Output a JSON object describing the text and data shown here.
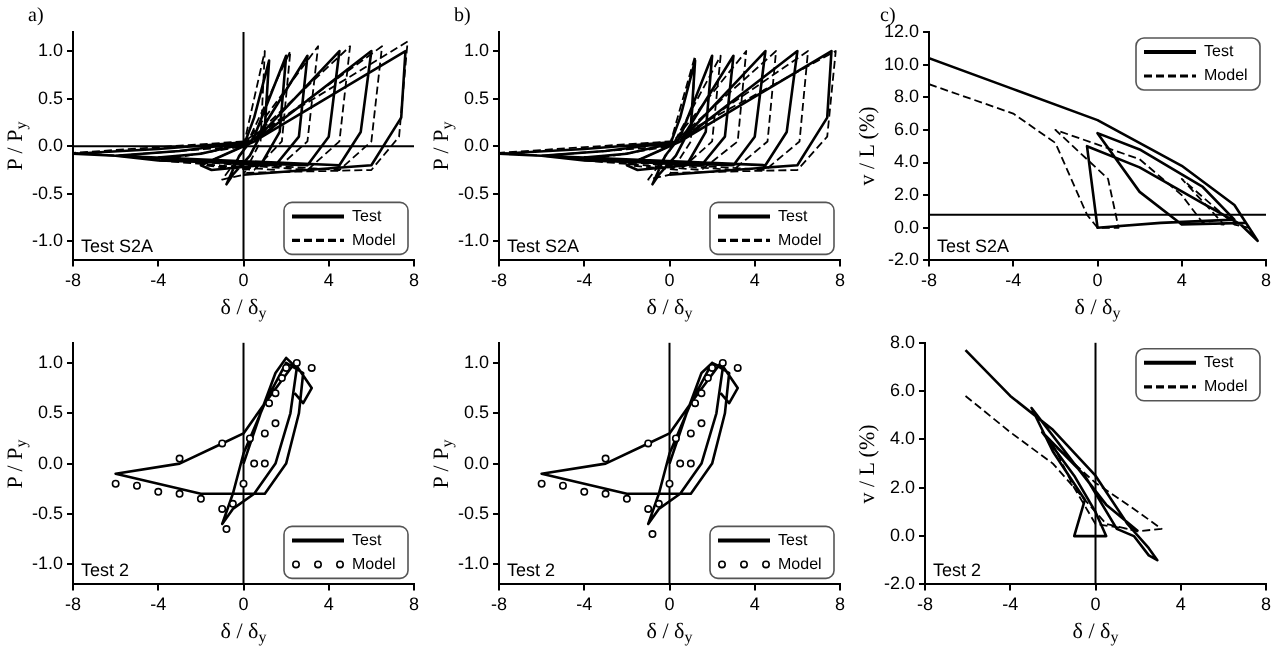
{
  "chart_data": [
    {
      "type": "line",
      "title": "a)",
      "xlabel": "δ / δ$_{y}$",
      "ylabel": "P / P$_{y}$",
      "xlim": [
        -8,
        8
      ],
      "xticks": [
        -8,
        -4,
        0,
        4,
        8
      ],
      "ylim": [
        -1.2,
        1.2
      ],
      "yticks": [
        {
          "value": -1,
          "label": "-1.0"
        },
        {
          "value": -0.5,
          "label": "-0.5"
        },
        {
          "value": 0,
          "label": "0.0"
        },
        {
          "value": 0.5,
          "label": "0.5"
        },
        {
          "value": 1,
          "label": "1.0"
        }
      ],
      "grid": false,
      "legend": "bottom right",
      "annotations": [
        "Test S2A"
      ],
      "ref_lines": [
        {
          "axis": "x",
          "value": 0
        },
        {
          "axis": "y",
          "value": 0
        }
      ],
      "series": [
        {
          "name": "Test",
          "color": "#000000",
          "line_style": "solid",
          "x": [
            0,
            0.5,
            1.2,
            1.0,
            0.3,
            -0.5,
            -0.8,
            -0.2,
            0.5,
            2,
            1.7,
            0.8,
            -1.5,
            -2,
            -1,
            0.5,
            3,
            2.6,
            1.5,
            -3,
            -4,
            -2,
            0.5,
            4.5,
            4,
            3,
            -4,
            -6,
            -3,
            0.5,
            6,
            5.5,
            4.5,
            -6,
            -8,
            -4,
            0.5,
            7.6,
            7.4,
            6,
            3,
            0
          ],
          "values": [
            0,
            0.3,
            0.9,
            0.2,
            -0.1,
            -0.3,
            -0.4,
            -0.1,
            0.1,
            0.95,
            0.15,
            -0.2,
            -0.25,
            -0.2,
            -0.1,
            0.05,
            0.95,
            0.1,
            -0.2,
            -0.15,
            -0.12,
            -0.08,
            0.05,
            1.0,
            0.1,
            -0.2,
            -0.15,
            -0.1,
            -0.05,
            0.05,
            1.0,
            0.15,
            -0.2,
            -0.1,
            -0.08,
            -0.03,
            0.05,
            1.0,
            0.3,
            -0.2,
            -0.25,
            -0.3
          ]
        },
        {
          "name": "Model",
          "color": "#000000",
          "line_style": "dashed",
          "x": [
            0,
            1,
            0.8,
            0,
            -1,
            0,
            2.2,
            1.8,
            0.5,
            -2,
            0,
            3.5,
            3,
            1.5,
            -4,
            0,
            5,
            4.5,
            3,
            -6,
            0,
            6.5,
            6,
            4.5,
            -8,
            0,
            7.7,
            7.3,
            6,
            0
          ],
          "values": [
            0,
            1.0,
            0.05,
            -0.3,
            -0.35,
            -0.05,
            1.0,
            0.05,
            -0.25,
            -0.2,
            0,
            1.05,
            0.05,
            -0.25,
            -0.15,
            0,
            1.05,
            0.05,
            -0.25,
            -0.1,
            0,
            1.05,
            0.05,
            -0.25,
            -0.07,
            0.05,
            1.1,
            0.1,
            -0.25,
            -0.28
          ]
        }
      ]
    },
    {
      "type": "line",
      "title": "b)",
      "xlabel": "δ / δ$_{y}$",
      "ylabel": "P / P$_{y}$",
      "xlim": [
        -8,
        8
      ],
      "xticks": [
        -8,
        -4,
        0,
        4,
        8
      ],
      "ylim": [
        -1.2,
        1.2
      ],
      "yticks": [
        {
          "value": -1,
          "label": "-1.0"
        },
        {
          "value": -0.5,
          "label": "-0.5"
        },
        {
          "value": 0,
          "label": "0.0"
        },
        {
          "value": 0.5,
          "label": "0.5"
        },
        {
          "value": 1,
          "label": "1.0"
        }
      ],
      "grid": false,
      "legend": "bottom right",
      "annotations": [
        "Test S2A"
      ],
      "series": [
        {
          "name": "Test",
          "color": "#000000",
          "line_style": "solid",
          "x": [
            0,
            0.5,
            1.2,
            1.0,
            0.3,
            -0.5,
            -0.8,
            -0.2,
            0.5,
            2,
            1.7,
            0.8,
            -1.5,
            -2,
            -1,
            0.5,
            3,
            2.6,
            1.5,
            -3,
            -4,
            -2,
            0.5,
            4.5,
            4,
            3,
            -4,
            -6,
            -3,
            0.5,
            6,
            5.5,
            4.5,
            -6,
            -8,
            -4,
            0.5,
            7.6,
            7.4,
            6,
            3,
            0
          ],
          "values": [
            0,
            0.3,
            0.9,
            0.2,
            -0.1,
            -0.3,
            -0.4,
            -0.1,
            0.1,
            0.95,
            0.15,
            -0.2,
            -0.25,
            -0.2,
            -0.1,
            0.05,
            0.95,
            0.1,
            -0.2,
            -0.15,
            -0.12,
            -0.08,
            0.05,
            1.0,
            0.1,
            -0.2,
            -0.15,
            -0.1,
            -0.05,
            0.05,
            1.0,
            0.15,
            -0.2,
            -0.1,
            -0.08,
            -0.03,
            0.05,
            1.0,
            0.3,
            -0.2,
            -0.25,
            -0.3
          ]
        },
        {
          "name": "Model",
          "color": "#000000",
          "line_style": "dashed",
          "x": [
            0,
            1.2,
            1.0,
            0,
            -1,
            0,
            2.4,
            2.0,
            0.5,
            -2,
            0,
            3.6,
            3.2,
            1.5,
            -4,
            0,
            5,
            4.6,
            3,
            -6,
            0,
            6.5,
            6.1,
            4.5,
            -8,
            0,
            7.8,
            7.4,
            6,
            0
          ],
          "values": [
            0,
            0.95,
            0.05,
            -0.3,
            -0.35,
            -0.05,
            0.95,
            0.05,
            -0.25,
            -0.2,
            0,
            1.0,
            0.05,
            -0.25,
            -0.15,
            0,
            1.0,
            0.05,
            -0.25,
            -0.1,
            0,
            1.0,
            0.05,
            -0.25,
            -0.07,
            0.05,
            1.0,
            0.1,
            -0.25,
            -0.28
          ]
        }
      ]
    },
    {
      "type": "line",
      "title": "c)",
      "xlabel": "δ / δ$_{y}$",
      "ylabel": "v / L (%)",
      "xlim": [
        -8,
        8
      ],
      "xticks": [
        -8,
        -4,
        0,
        4,
        8
      ],
      "ylim": [
        -2,
        12
      ],
      "yticks": [
        {
          "value": -2,
          "label": "-2.0"
        },
        {
          "value": 0,
          "label": "0.0"
        },
        {
          "value": 2,
          "label": "2.0"
        },
        {
          "value": 4,
          "label": "4.0"
        },
        {
          "value": 6,
          "label": "6.0"
        },
        {
          "value": 8,
          "label": "8.0"
        },
        {
          "value": 10,
          "label": "10.0"
        },
        {
          "value": 12,
          "label": "12.0"
        }
      ],
      "grid": false,
      "legend": "top right",
      "annotations": [
        "Test S2A"
      ],
      "ref_lines": [
        {
          "axis": "y",
          "value": 0.8
        }
      ],
      "series": [
        {
          "name": "Test",
          "color": "#000000",
          "line_style": "solid",
          "x": [
            -8,
            -4,
            0,
            4,
            6.5,
            7.6,
            6.8,
            5,
            2,
            -0.5,
            0,
            3,
            6.5,
            5,
            2,
            0,
            2,
            4,
            7
          ],
          "values": [
            10.4,
            8.5,
            6.6,
            3.8,
            1.4,
            -0.8,
            0.2,
            1.5,
            3.7,
            5,
            0,
            0.3,
            0.5,
            2.5,
            4.8,
            5.8,
            2.2,
            0.2,
            0.3
          ]
        },
        {
          "name": "Model",
          "color": "#000000",
          "line_style": "dashed",
          "x": [
            -8,
            -4,
            -2,
            -0.5,
            0,
            1,
            0.5,
            -2,
            2,
            4,
            5,
            6,
            4,
            6.5,
            7.2
          ],
          "values": [
            8.8,
            7,
            5.2,
            0.8,
            0,
            0,
            3,
            6,
            4.2,
            2,
            0.3,
            0.2,
            3,
            0.2,
            0
          ]
        }
      ]
    },
    {
      "type": "line",
      "xlabel": "δ / δ$_{y}$",
      "ylabel": "P / P$_{y}$",
      "xlim": [
        -8,
        8
      ],
      "xticks": [
        -8,
        -4,
        0,
        4,
        8
      ],
      "ylim": [
        -1.2,
        1.2
      ],
      "yticks": [
        {
          "value": -1,
          "label": "-1.0"
        },
        {
          "value": -0.5,
          "label": "-0.5"
        },
        {
          "value": 0,
          "label": "0.0"
        },
        {
          "value": 0.5,
          "label": "0.5"
        },
        {
          "value": 1,
          "label": "1.0"
        }
      ],
      "grid": false,
      "legend": "bottom right",
      "annotations": [
        "Test 2"
      ],
      "ref_lines": [
        {
          "axis": "x",
          "value": 0
        }
      ],
      "series": [
        {
          "name": "Test",
          "color": "#000000",
          "line_style": "solid",
          "x": [
            0,
            0.8,
            1.5,
            2,
            2.5,
            2.2,
            1.5,
            0.5,
            -0.5,
            -1,
            -0.5,
            0,
            1,
            2,
            2.8,
            2.6,
            2,
            1,
            -2,
            -6,
            -3,
            -1,
            0,
            1,
            2.4,
            3.2,
            2.8,
            2.4
          ],
          "values": [
            0,
            0.5,
            0.9,
            1.05,
            0.95,
            0.5,
            0,
            -0.3,
            -0.45,
            -0.6,
            -0.3,
            0.1,
            0.6,
            1.0,
            0.9,
            0.5,
            0,
            -0.3,
            -0.3,
            -0.1,
            0,
            0.2,
            0.3,
            0.6,
            1.0,
            0.75,
            0.6,
            0.7
          ]
        },
        {
          "name": "Model",
          "color": "#000000",
          "type": "scatter",
          "marker": "circle",
          "x": [
            -6,
            -5,
            -4,
            -3,
            -2,
            -1,
            -0.8,
            -0.5,
            0,
            0.5,
            1,
            1.5,
            2,
            2.5,
            3.2,
            1.5,
            1,
            -1,
            -3,
            0.3,
            1.2,
            1.8
          ],
          "values": [
            -0.2,
            -0.22,
            -0.28,
            -0.3,
            -0.35,
            -0.45,
            -0.65,
            -0.4,
            -0.2,
            0,
            0.3,
            0.7,
            0.95,
            1.0,
            0.95,
            0.4,
            0,
            0.2,
            0.05,
            0.25,
            0.6,
            0.85
          ]
        }
      ]
    },
    {
      "type": "line",
      "xlabel": "δ / δ$_{y}$",
      "ylabel": "P / P$_{y}$",
      "xlim": [
        -8,
        8
      ],
      "xticks": [
        -8,
        -4,
        0,
        4,
        8
      ],
      "ylim": [
        -1.2,
        1.2
      ],
      "yticks": [
        {
          "value": -1,
          "label": "-1.0"
        },
        {
          "value": -0.5,
          "label": "-0.5"
        },
        {
          "value": 0,
          "label": "0.0"
        },
        {
          "value": 0.5,
          "label": "0.5"
        },
        {
          "value": 1,
          "label": "1.0"
        }
      ],
      "grid": false,
      "legend": "bottom right",
      "annotations": [
        "Test 2"
      ],
      "ref_lines": [
        {
          "axis": "x",
          "value": 0
        }
      ],
      "series": [
        {
          "name": "Test",
          "color": "#000000",
          "line_style": "solid",
          "x": [
            0,
            0.8,
            1.5,
            2,
            2.5,
            2.2,
            1.5,
            0.5,
            -0.5,
            -1,
            -0.5,
            0,
            1,
            2,
            2.8,
            2.6,
            2,
            1,
            -2,
            -6,
            -3,
            -1,
            0,
            1,
            2.4,
            3.2,
            2.8,
            2.4
          ],
          "values": [
            0,
            0.5,
            0.9,
            1.0,
            0.95,
            0.5,
            0,
            -0.3,
            -0.45,
            -0.6,
            -0.3,
            0.1,
            0.6,
            1.0,
            0.9,
            0.5,
            0,
            -0.3,
            -0.3,
            -0.1,
            0,
            0.2,
            0.3,
            0.6,
            1.0,
            0.75,
            0.6,
            0.7
          ]
        },
        {
          "name": "Model",
          "color": "#000000",
          "type": "scatter",
          "marker": "circle",
          "x": [
            -6,
            -5,
            -4,
            -3,
            -2,
            -1,
            -0.8,
            -0.5,
            0,
            0.5,
            1,
            1.5,
            2,
            2.5,
            3.2,
            1.5,
            1,
            -1,
            -3,
            0.3,
            1.2,
            1.8
          ],
          "values": [
            -0.2,
            -0.22,
            -0.28,
            -0.3,
            -0.35,
            -0.45,
            -0.7,
            -0.4,
            -0.2,
            0,
            0.3,
            0.7,
            0.95,
            1.0,
            0.95,
            0.4,
            0,
            0.2,
            0.05,
            0.25,
            0.6,
            0.85
          ]
        }
      ]
    },
    {
      "type": "line",
      "xlabel": "δ / δ$_{y}$",
      "ylabel": "v / L (%)",
      "xlim": [
        -8,
        8
      ],
      "xticks": [
        -8,
        -4,
        0,
        4,
        8
      ],
      "ylim": [
        -2,
        8
      ],
      "yticks": [
        {
          "value": -2,
          "label": "-2.0"
        },
        {
          "value": 0,
          "label": "0.0"
        },
        {
          "value": 2,
          "label": "2.0"
        },
        {
          "value": 4,
          "label": "4.0"
        },
        {
          "value": 6,
          "label": "6.0"
        },
        {
          "value": 8,
          "label": "8.0"
        }
      ],
      "grid": false,
      "legend": "top right",
      "annotations": [
        "Test 2"
      ],
      "ref_lines": [
        {
          "axis": "x",
          "value": 0
        }
      ],
      "series": [
        {
          "name": "Test",
          "color": "#000000",
          "line_style": "solid",
          "x": [
            -6.1,
            -4,
            -2,
            0,
            1.5,
            2.5,
            2.9,
            2.5,
            1.8,
            1,
            -0.5,
            -2.5,
            -1,
            0,
            0.5,
            -1,
            -0.5,
            -2,
            -3,
            -1,
            0.5,
            2
          ],
          "values": [
            7.7,
            5.8,
            4.4,
            2.5,
            0.5,
            -0.5,
            -1.0,
            -0.8,
            0,
            0.3,
            2.5,
            4.3,
            2.5,
            1,
            0,
            0,
            1.5,
            3.5,
            5.3,
            3,
            1.3,
            0.2
          ]
        },
        {
          "name": "Model",
          "color": "#000000",
          "line_style": "dashed",
          "x": [
            -6.1,
            -4,
            -2,
            -0.5,
            0.5,
            2,
            3.1,
            2,
            0,
            -2,
            -1,
            0,
            1.5
          ],
          "values": [
            5.8,
            4.3,
            3,
            1.5,
            0.5,
            0.2,
            0.3,
            1,
            2.2,
            3.8,
            2,
            0.5,
            0.3
          ]
        }
      ]
    }
  ]
}
